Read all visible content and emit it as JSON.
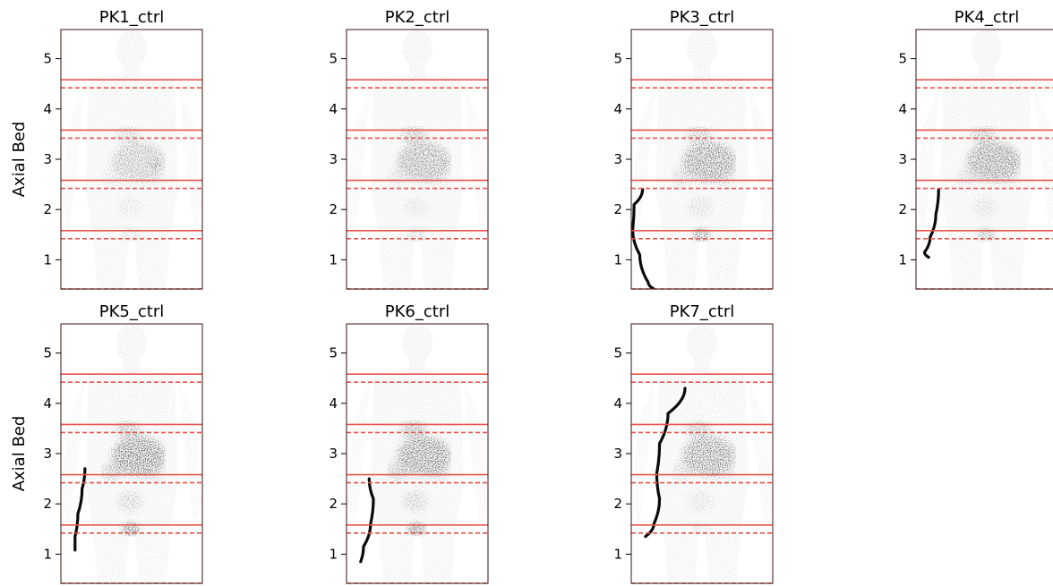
{
  "figure": {
    "ylabel": "Axial Bed"
  },
  "chart_data": [
    {
      "type": "image",
      "title": "PK1_ctrl",
      "ylabel": "Axial Bed",
      "yticks": [
        1,
        2,
        3,
        4,
        5
      ],
      "ylim": [
        0.42,
        5.58
      ],
      "solid_lines": [
        4.58,
        3.58,
        2.58,
        1.58
      ],
      "dashed_lines": [
        4.42,
        3.42,
        2.42,
        1.42,
        0.42
      ],
      "line_color": "#e8544e",
      "colormap": "gray_r",
      "uptake": {
        "heart": 0.35,
        "liver": 0.55,
        "liver_focus": true,
        "bladder": 0.25,
        "kidneys": 0.2
      },
      "catheter": null
    },
    {
      "type": "image",
      "title": "PK2_ctrl",
      "ylabel": "",
      "yticks": [
        1,
        2,
        3,
        4,
        5
      ],
      "ylim": [
        0.42,
        5.58
      ],
      "solid_lines": [
        4.58,
        3.58,
        2.58,
        1.58
      ],
      "dashed_lines": [
        4.42,
        3.42,
        2.42,
        1.42,
        0.42
      ],
      "line_color": "#e8544e",
      "colormap": "gray_r",
      "uptake": {
        "heart": 0.55,
        "liver": 0.75,
        "bladder": 0.3,
        "kidneys": 0.25
      },
      "catheter": null
    },
    {
      "type": "image",
      "title": "PK3_ctrl",
      "ylabel": "",
      "yticks": [
        1,
        2,
        3,
        4,
        5
      ],
      "ylim": [
        0.42,
        5.58
      ],
      "solid_lines": [
        4.58,
        3.58,
        2.58,
        1.58
      ],
      "dashed_lines": [
        4.42,
        3.42,
        2.42,
        1.42,
        0.42
      ],
      "line_color": "#e8544e",
      "colormap": "gray_r",
      "uptake": {
        "heart": 0.5,
        "liver": 0.9,
        "bladder": 0.85,
        "kidneys": 0.35
      },
      "catheter": [
        [
          0.08,
          2.4
        ],
        [
          0.02,
          2.1
        ],
        [
          0.01,
          1.6
        ],
        [
          0.06,
          1.1
        ],
        [
          0.12,
          0.55
        ],
        [
          0.16,
          0.42
        ]
      ]
    },
    {
      "type": "image",
      "title": "PK4_ctrl",
      "ylabel": "",
      "yticks": [
        1,
        2,
        3,
        4,
        5
      ],
      "ylim": [
        0.42,
        5.58
      ],
      "solid_lines": [
        4.58,
        3.58,
        2.58,
        1.58
      ],
      "dashed_lines": [
        4.42,
        3.42,
        2.42,
        1.42,
        0.42
      ],
      "line_color": "#e8544e",
      "colormap": "gray_r",
      "uptake": {
        "heart": 0.55,
        "liver": 0.9,
        "bladder": 0.6,
        "kidneys": 0.3
      },
      "catheter": [
        [
          0.16,
          2.4
        ],
        [
          0.14,
          1.9
        ],
        [
          0.1,
          1.45
        ],
        [
          0.06,
          1.15
        ],
        [
          0.09,
          1.05
        ]
      ]
    },
    {
      "type": "image",
      "title": "PK5_ctrl",
      "ylabel": "Axial Bed",
      "yticks": [
        1,
        2,
        3,
        4,
        5
      ],
      "ylim": [
        0.42,
        5.58
      ],
      "solid_lines": [
        4.58,
        3.58,
        2.58,
        1.58
      ],
      "dashed_lines": [
        4.42,
        3.42,
        2.42,
        1.42,
        0.42
      ],
      "line_color": "#e8544e",
      "colormap": "gray_r",
      "uptake": {
        "heart": 0.6,
        "liver": 1.0,
        "bladder": 0.95,
        "kidneys": 0.5
      },
      "catheter": [
        [
          0.17,
          2.7
        ],
        [
          0.15,
          2.3
        ],
        [
          0.12,
          1.8
        ],
        [
          0.1,
          1.35
        ],
        [
          0.1,
          1.08
        ]
      ]
    },
    {
      "type": "image",
      "title": "PK6_ctrl",
      "ylabel": "",
      "yticks": [
        1,
        2,
        3,
        4,
        5
      ],
      "ylim": [
        0.42,
        5.58
      ],
      "solid_lines": [
        4.58,
        3.58,
        2.58,
        1.58
      ],
      "dashed_lines": [
        4.42,
        3.42,
        2.42,
        1.42,
        0.42
      ],
      "line_color": "#e8544e",
      "colormap": "gray_r",
      "uptake": {
        "heart": 0.7,
        "liver": 0.95,
        "bladder": 0.95,
        "kidneys": 0.55
      },
      "catheter": [
        [
          0.16,
          2.5
        ],
        [
          0.19,
          2.1
        ],
        [
          0.17,
          1.6
        ],
        [
          0.12,
          1.15
        ],
        [
          0.1,
          0.85
        ]
      ]
    },
    {
      "type": "image",
      "title": "PK7_ctrl",
      "ylabel": "",
      "yticks": [
        1,
        2,
        3,
        4,
        5
      ],
      "ylim": [
        0.42,
        5.58
      ],
      "solid_lines": [
        4.58,
        3.58,
        2.58,
        1.58
      ],
      "dashed_lines": [
        4.42,
        3.42,
        2.42,
        1.42,
        0.42
      ],
      "line_color": "#e8544e",
      "colormap": "gray_r",
      "uptake": {
        "heart": 0.55,
        "liver": 0.85,
        "bladder": 0.2,
        "kidneys": 0.3
      },
      "catheter": [
        [
          0.38,
          4.3
        ],
        [
          0.26,
          3.8
        ],
        [
          0.2,
          3.2
        ],
        [
          0.18,
          2.6
        ],
        [
          0.2,
          2.1
        ],
        [
          0.16,
          1.6
        ],
        [
          0.1,
          1.35
        ]
      ]
    }
  ]
}
